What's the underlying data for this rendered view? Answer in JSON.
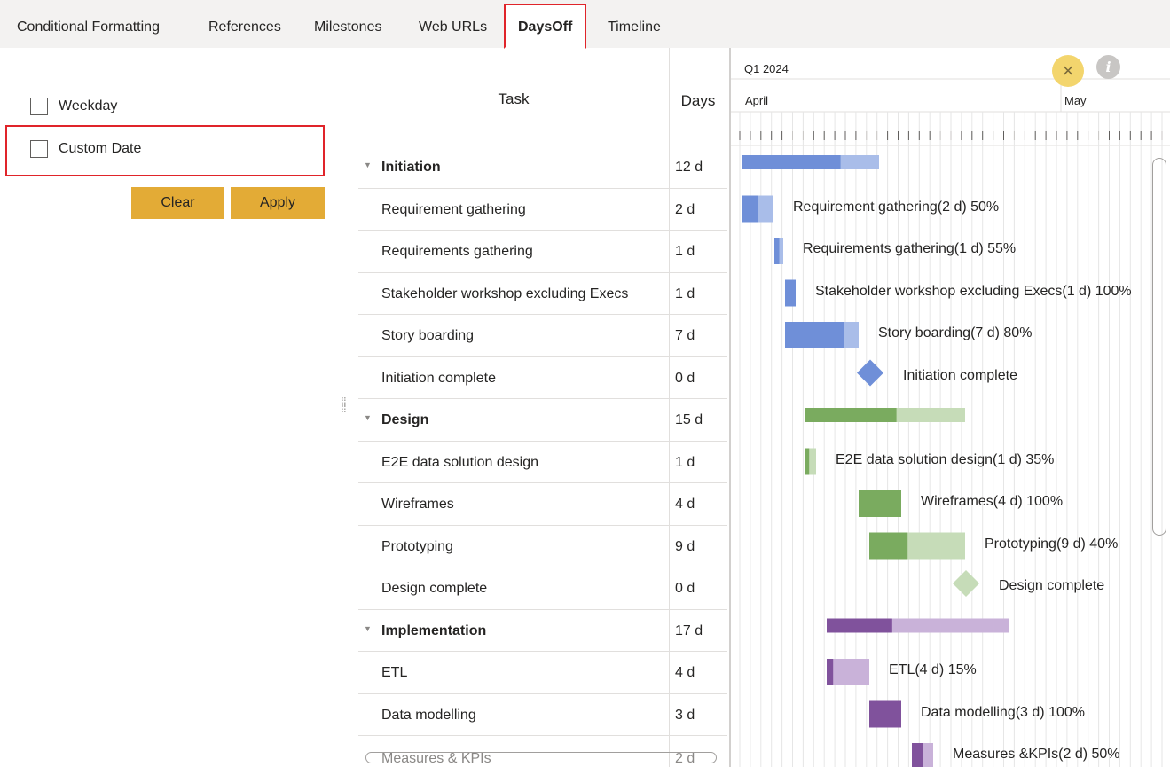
{
  "tabs": [
    {
      "label": "Conditional Formatting",
      "active": false
    },
    {
      "label": "References",
      "active": false
    },
    {
      "label": "Milestones",
      "active": false
    },
    {
      "label": "Web URLs",
      "active": false
    },
    {
      "label": "DaysOff",
      "active": true
    },
    {
      "label": "Timeline",
      "active": false
    }
  ],
  "days_off": {
    "weekday_label": "Weekday",
    "weekday_checked": false,
    "custom_date_label": "Custom Date",
    "custom_date_checked": false,
    "clear_label": "Clear",
    "apply_label": "Apply"
  },
  "grid": {
    "task_header": "Task",
    "days_header": "Days",
    "rows": [
      {
        "name": "Initiation",
        "days": "12 d",
        "summary": true
      },
      {
        "name": "Requirement gathering",
        "days": "2 d",
        "summary": false
      },
      {
        "name": "Requirements gathering",
        "days": "1 d",
        "summary": false
      },
      {
        "name": "Stakeholder workshop excluding Execs",
        "days": "1 d",
        "summary": false
      },
      {
        "name": "Story boarding",
        "days": "7 d",
        "summary": false
      },
      {
        "name": "Initiation complete",
        "days": "0 d",
        "summary": false
      },
      {
        "name": "Design",
        "days": "15 d",
        "summary": true
      },
      {
        "name": "E2E data solution design",
        "days": "1 d",
        "summary": false
      },
      {
        "name": "Wireframes",
        "days": "4 d",
        "summary": false
      },
      {
        "name": "Prototyping",
        "days": "9 d",
        "summary": false
      },
      {
        "name": "Design complete",
        "days": "0 d",
        "summary": false
      },
      {
        "name": "Implementation",
        "days": "17 d",
        "summary": true
      },
      {
        "name": "ETL",
        "days": "4 d",
        "summary": false
      },
      {
        "name": "Data modelling",
        "days": "3 d",
        "summary": false
      },
      {
        "name": "Measures & KPIs",
        "days": "2 d",
        "summary": false
      }
    ]
  },
  "timeline": {
    "quarter_label": "Q1 2024",
    "months": [
      "April",
      "May"
    ],
    "close_icon": "close-icon",
    "info_icon": "info-icon",
    "colors": {
      "blue_done": "#6f8fd8",
      "blue_rest": "#a9bde9",
      "green_done": "#7aab5f",
      "green_rest": "#c6dcb8",
      "purple_done": "#80529c",
      "purple_rest": "#c9b2d9"
    },
    "bars": [
      {
        "label": "",
        "group": "blue",
        "type": "summary"
      },
      {
        "label": "Requirement gathering(2 d) 50%",
        "group": "blue",
        "type": "task",
        "progress": 50
      },
      {
        "label": "Requirements gathering(1 d) 55%",
        "group": "blue",
        "type": "task",
        "progress": 55
      },
      {
        "label": "Stakeholder workshop excluding Execs(1 d) 100%",
        "group": "blue",
        "type": "task",
        "progress": 100
      },
      {
        "label": "Story boarding(7 d) 80%",
        "group": "blue",
        "type": "task",
        "progress": 80
      },
      {
        "label": "Initiation complete",
        "group": "blue",
        "type": "milestone"
      },
      {
        "label": "",
        "group": "green",
        "type": "summary"
      },
      {
        "label": "E2E data solution design(1 d) 35%",
        "group": "green",
        "type": "task",
        "progress": 35
      },
      {
        "label": "Wireframes(4 d) 100%",
        "group": "green",
        "type": "task",
        "progress": 100
      },
      {
        "label": "Prototyping(9 d) 40%",
        "group": "green",
        "type": "task",
        "progress": 40
      },
      {
        "label": "Design complete",
        "group": "green",
        "type": "milestone"
      },
      {
        "label": "",
        "group": "purple",
        "type": "summary"
      },
      {
        "label": "ETL(4 d) 15%",
        "group": "purple",
        "type": "task",
        "progress": 15
      },
      {
        "label": "Data modelling(3 d) 100%",
        "group": "purple",
        "type": "task",
        "progress": 100
      },
      {
        "label": "Measures &KPIs(2 d) 50%",
        "group": "purple",
        "type": "task",
        "progress": 50
      }
    ]
  }
}
